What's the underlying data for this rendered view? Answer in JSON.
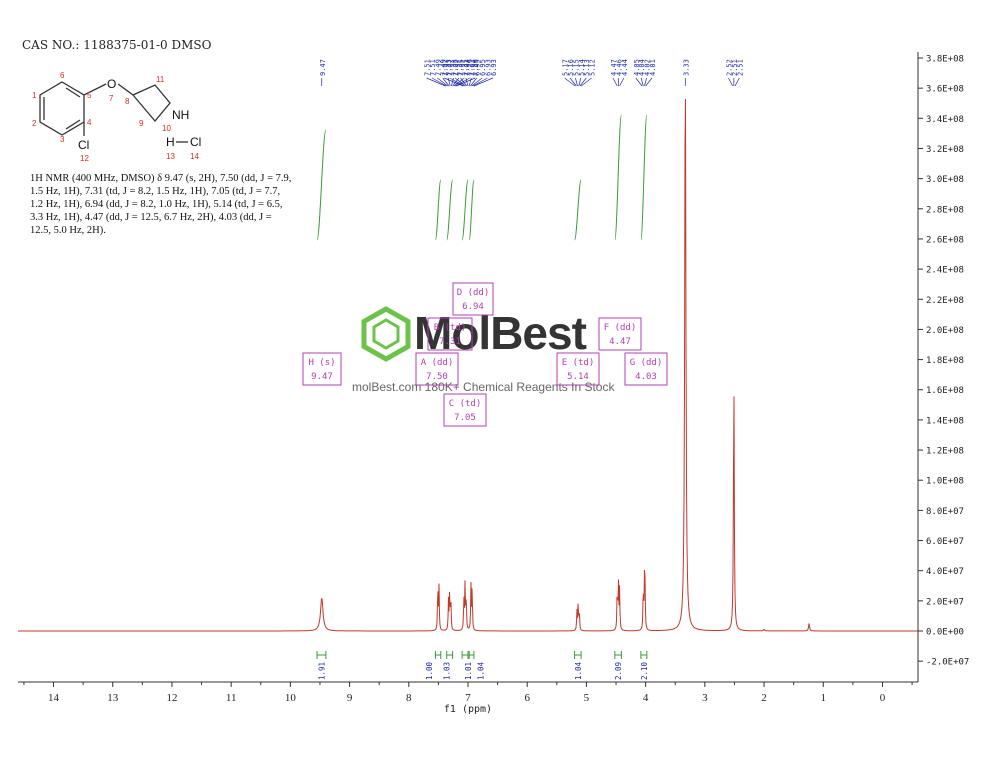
{
  "title": "CAS NO.: 1188375-01-0 DMSO",
  "nmr_text": "1H NMR (400 MHz, DMSO) δ 9.47 (s, 2H), 7.50 (dd, J = 7.9, 1.5 Hz, 1H), 7.31 (td, J = 8.2, 1.5 Hz, 1H), 7.05 (td, J = 7.7, 1.2 Hz, 1H), 6.94 (dd, J = 8.2, 1.0 Hz, 1H), 5.14 (td, J = 6.5, 3.3 Hz, 1H), 4.47 (dd, J = 12.5, 6.7 Hz, 2H), 4.03 (dd, J = 12.5, 5.0 Hz, 2H).",
  "watermark": {
    "brand": "MolBest",
    "tagline": "molBest.com 180K+ Chemical Reagents In Stock"
  },
  "structure": {
    "atom_labels": [
      "O",
      "NH",
      "Cl",
      "H",
      "Cl"
    ],
    "atom_numbers": [
      "1",
      "2",
      "3",
      "4",
      "5",
      "6",
      "7",
      "8",
      "9",
      "10",
      "11",
      "12",
      "13",
      "14"
    ]
  },
  "chart_data": {
    "type": "line",
    "title": "",
    "xlabel": "f1 (ppm)",
    "ylabel": "",
    "x_axis_reversed": true,
    "xlim": [
      14.6,
      -0.6
    ],
    "ylim": [
      -30000000.0,
      380000000.0
    ],
    "x_ticks": [
      14,
      13,
      12,
      11,
      10,
      9,
      8,
      7,
      6,
      5,
      4,
      3,
      2,
      1,
      0
    ],
    "y_ticks": [
      {
        "v": 380000000,
        "label": "3.8E+08"
      },
      {
        "v": 360000000,
        "label": "3.6E+08"
      },
      {
        "v": 340000000,
        "label": "3.4E+08"
      },
      {
        "v": 320000000,
        "label": "3.2E+08"
      },
      {
        "v": 300000000,
        "label": "3.0E+08"
      },
      {
        "v": 280000000,
        "label": "2.8E+08"
      },
      {
        "v": 260000000,
        "label": "2.6E+08"
      },
      {
        "v": 240000000,
        "label": "2.4E+08"
      },
      {
        "v": 220000000,
        "label": "2.2E+08"
      },
      {
        "v": 200000000,
        "label": "2.0E+08"
      },
      {
        "v": 180000000,
        "label": "1.8E+08"
      },
      {
        "v": 160000000,
        "label": "1.6E+08"
      },
      {
        "v": 140000000,
        "label": "1.4E+08"
      },
      {
        "v": 120000000,
        "label": "1.2E+08"
      },
      {
        "v": 100000000,
        "label": "1.0E+08"
      },
      {
        "v": 80000000,
        "label": "8.0E+07"
      },
      {
        "v": 60000000,
        "label": "6.0E+07"
      },
      {
        "v": 40000000,
        "label": "4.0E+07"
      },
      {
        "v": 20000000,
        "label": "2.0E+07"
      },
      {
        "v": 0,
        "label": "0.0E+00"
      },
      {
        "v": -20000000,
        "label": "-2.0E+07"
      }
    ],
    "peaks": [
      {
        "ppm": 9.47,
        "height": 22000000.0,
        "width": 0.025
      },
      {
        "ppm": 7.51,
        "height": 30000000.0,
        "width": 0.006
      },
      {
        "ppm": 7.49,
        "height": 29000000.0,
        "width": 0.006
      },
      {
        "ppm": 7.33,
        "height": 20000000.0,
        "width": 0.006
      },
      {
        "ppm": 7.31,
        "height": 26000000.0,
        "width": 0.006
      },
      {
        "ppm": 7.29,
        "height": 21000000.0,
        "width": 0.006
      },
      {
        "ppm": 7.07,
        "height": 22000000.0,
        "width": 0.006
      },
      {
        "ppm": 7.05,
        "height": 30000000.0,
        "width": 0.006
      },
      {
        "ppm": 7.03,
        "height": 23000000.0,
        "width": 0.006
      },
      {
        "ppm": 6.95,
        "height": 30000000.0,
        "width": 0.006
      },
      {
        "ppm": 6.93,
        "height": 29000000.0,
        "width": 0.006
      },
      {
        "ppm": 5.16,
        "height": 13000000.0,
        "width": 0.006
      },
      {
        "ppm": 5.14,
        "height": 18000000.0,
        "width": 0.006
      },
      {
        "ppm": 5.12,
        "height": 13000000.0,
        "width": 0.006
      },
      {
        "ppm": 4.48,
        "height": 27000000.0,
        "width": 0.006
      },
      {
        "ppm": 4.46,
        "height": 32000000.0,
        "width": 0.006
      },
      {
        "ppm": 4.44,
        "height": 28000000.0,
        "width": 0.006
      },
      {
        "ppm": 4.04,
        "height": 28000000.0,
        "width": 0.006
      },
      {
        "ppm": 4.02,
        "height": 31000000.0,
        "width": 0.006
      },
      {
        "ppm": 4.01,
        "height": 26000000.0,
        "width": 0.006
      },
      {
        "ppm": 3.33,
        "height": 380000000.0,
        "width": 0.012
      },
      {
        "ppm": 2.51,
        "height": 170000000.0,
        "width": 0.008
      },
      {
        "ppm": 1.24,
        "height": 5000000.0,
        "width": 0.01
      },
      {
        "ppm": 2.0,
        "height": 1000000.0,
        "width": 0.01
      }
    ],
    "peak_labels": [
      "9.47",
      "7.51",
      "7.51",
      "7.49",
      "7.49",
      "7.33",
      "7.33",
      "7.31",
      "7.31",
      "7.29",
      "7.29",
      "7.07",
      "7.07",
      "7.05",
      "7.05",
      "7.03",
      "7.03",
      "6.95",
      "6.95",
      "6.93",
      "6.93",
      "5.17",
      "5.16",
      "5.15",
      "5.14",
      "5.13",
      "5.12",
      "4.47",
      "4.46",
      "4.44",
      "4.05",
      "4.04",
      "4.02",
      "4.01",
      "3.33",
      "2.52",
      "2.51",
      "2.51"
    ],
    "multiplets": [
      {
        "name": "H (s)",
        "ppm": "9.47"
      },
      {
        "name": "A (dd)",
        "ppm": "7.50"
      },
      {
        "name": "B (td)",
        "ppm": "7.31"
      },
      {
        "name": "C (td)",
        "ppm": "7.05"
      },
      {
        "name": "D (dd)",
        "ppm": "6.94"
      },
      {
        "name": "E (td)",
        "ppm": "5.14"
      },
      {
        "name": "F (dd)",
        "ppm": "4.47"
      },
      {
        "name": "G (dd)",
        "ppm": "4.03"
      }
    ],
    "integrals": [
      {
        "from": 9.55,
        "to": 9.4,
        "value": "1.91"
      },
      {
        "from": 7.55,
        "to": 7.46,
        "value": "1.00"
      },
      {
        "from": 7.36,
        "to": 7.26,
        "value": "1.03"
      },
      {
        "from": 7.1,
        "to": 7.0,
        "value": "1.01"
      },
      {
        "from": 6.98,
        "to": 6.9,
        "value": "1.04"
      },
      {
        "from": 5.2,
        "to": 5.09,
        "value": "1.04"
      },
      {
        "from": 4.52,
        "to": 4.41,
        "value": "2.09"
      },
      {
        "from": 4.08,
        "to": 3.98,
        "value": "2.10"
      }
    ],
    "colors": {
      "spectrum": "#c0392b",
      "integral": "#3a9a3a",
      "peak_label": "#1f2aa6",
      "multiplet_box": "#b040b0",
      "axis": "#333333"
    }
  }
}
